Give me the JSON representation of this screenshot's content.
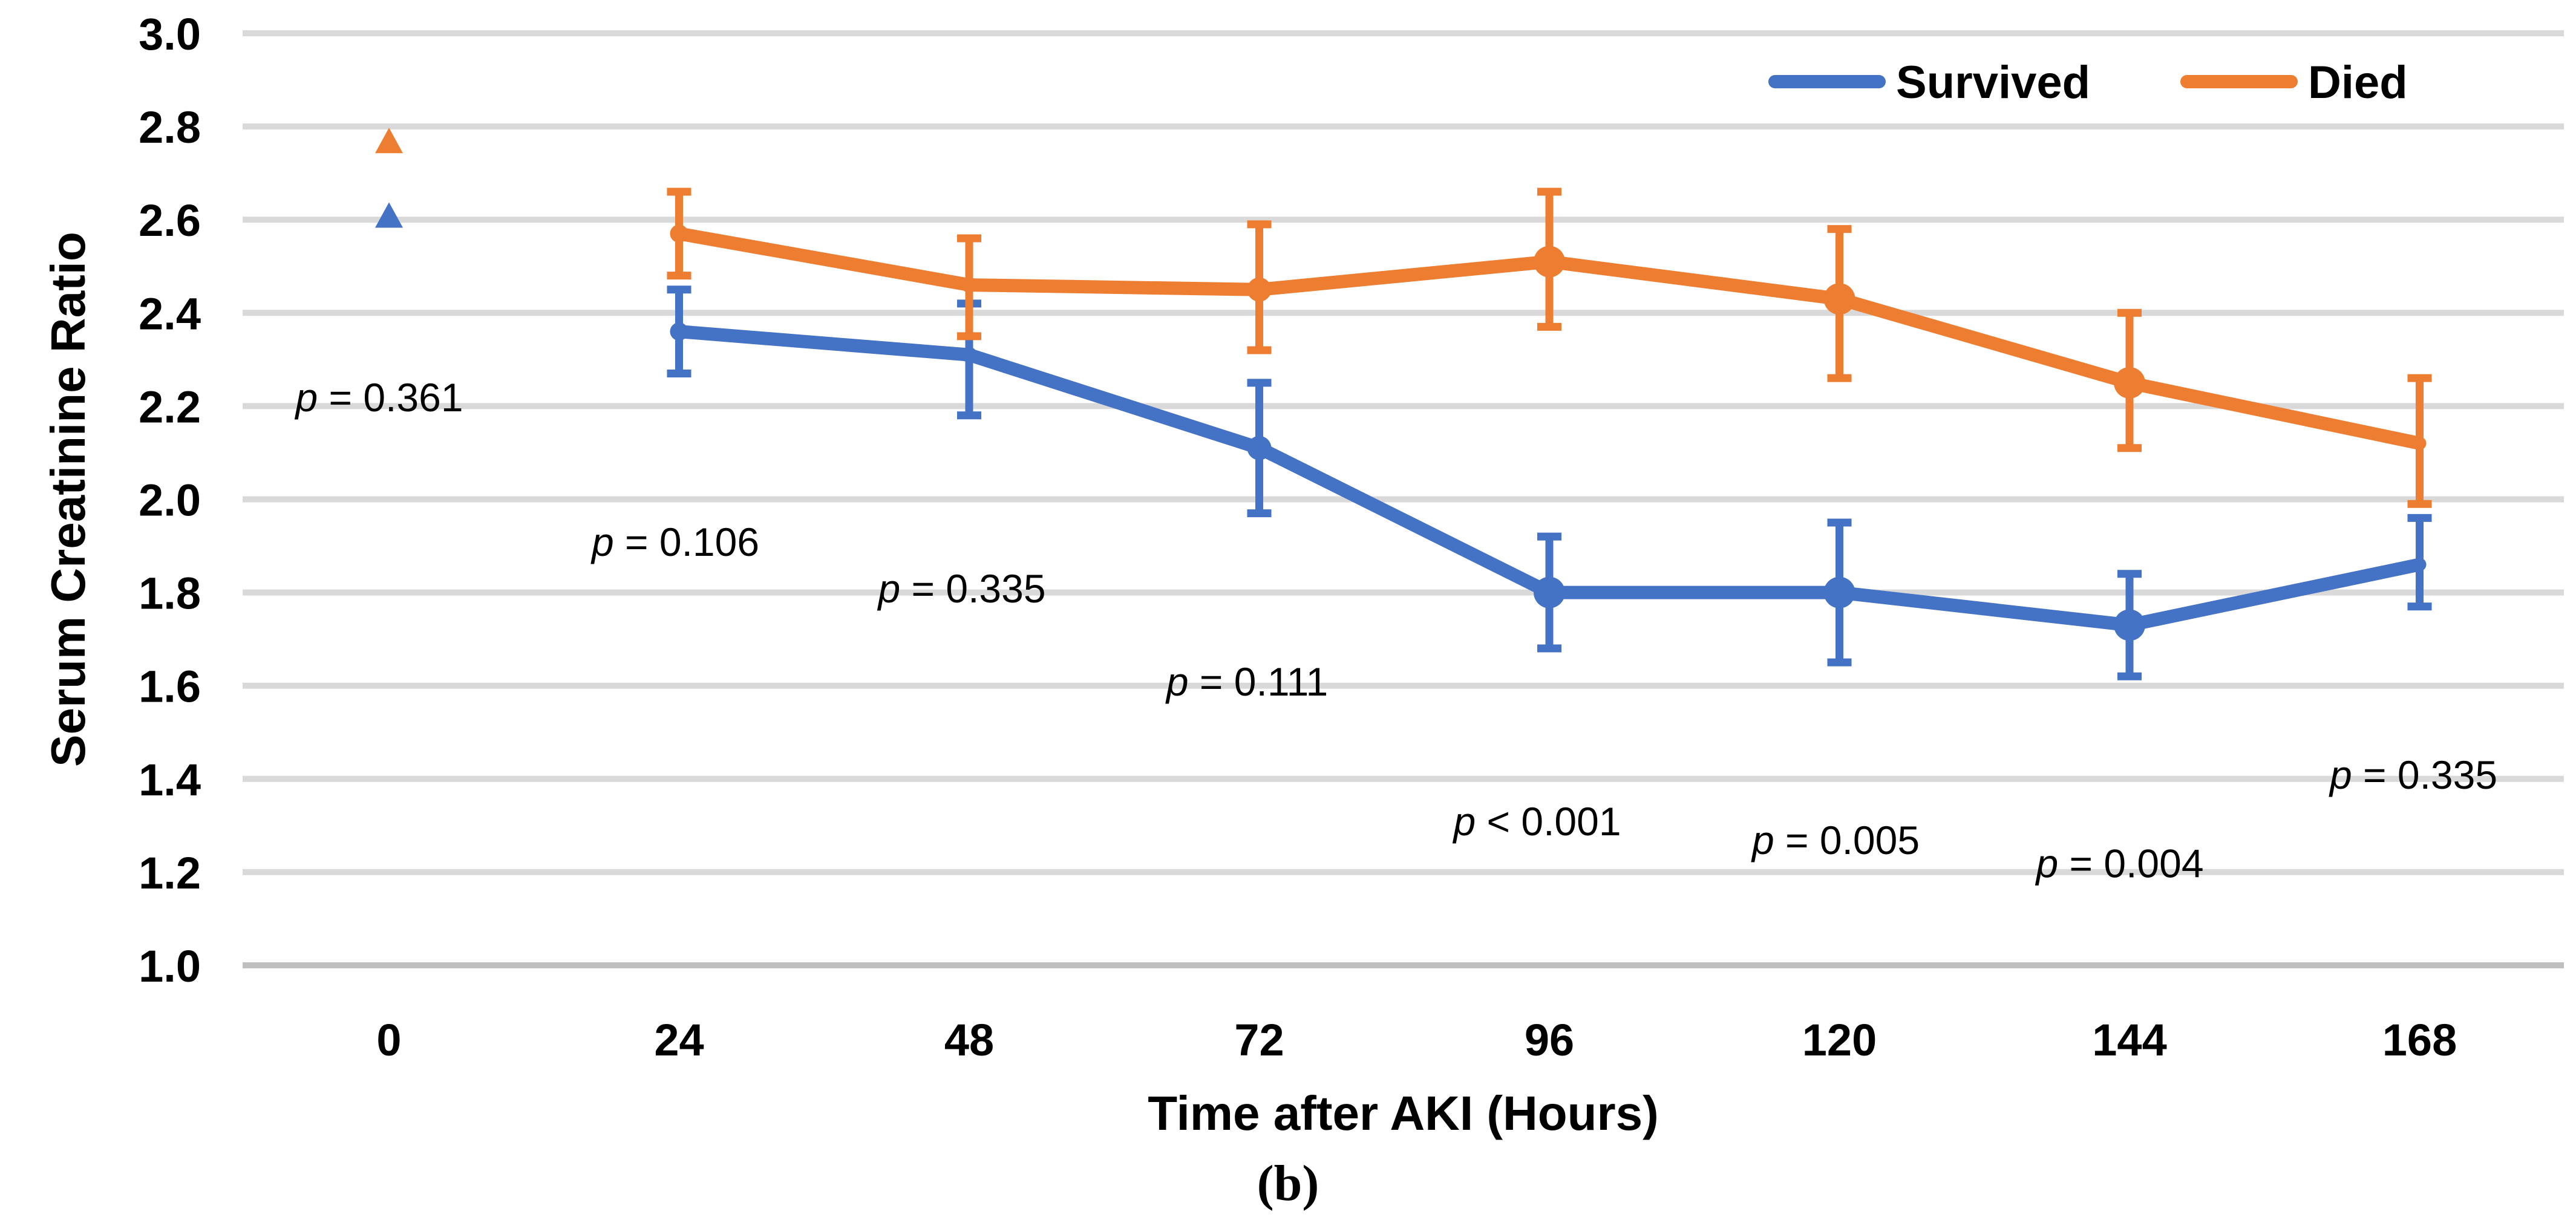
{
  "chart_data": {
    "type": "line",
    "title": "",
    "xlabel": "Time after AKI (Hours)",
    "ylabel": "Serum Creatinine Ratio",
    "caption": "(b)",
    "x_values": [
      0,
      24,
      48,
      72,
      96,
      120,
      144,
      168
    ],
    "x_ticklabels": [
      "0",
      "24",
      "48",
      "72",
      "96",
      "120",
      "144",
      "168"
    ],
    "y_ticks": [
      "3.0",
      "2.8",
      "2.6",
      "2.4",
      "2.2",
      "2.0",
      "1.8",
      "1.6",
      "1.4",
      "1.2",
      "1.0"
    ],
    "ylim": [
      1.0,
      3.0
    ],
    "grid": "horizontal",
    "legend_position": "top-right-inside",
    "colors": {
      "survived": "#4472C4",
      "died": "#ED7D31",
      "gridline": "#D9D9D9",
      "axis_line": "#BFBFBF",
      "text": "#000000"
    },
    "series": [
      {
        "name": "Survived",
        "color_key": "survived",
        "t0_marker": "triangle",
        "values": [
          2.61,
          2.36,
          2.31,
          2.11,
          1.8,
          1.8,
          1.73,
          1.86
        ],
        "err_up": [
          null,
          0.09,
          0.11,
          0.14,
          0.12,
          0.15,
          0.11,
          0.1
        ],
        "err_down": [
          null,
          0.09,
          0.13,
          0.14,
          0.12,
          0.15,
          0.11,
          0.09
        ]
      },
      {
        "name": "Died",
        "color_key": "died",
        "t0_marker": "triangle",
        "values": [
          2.77,
          2.57,
          2.46,
          2.45,
          2.51,
          2.43,
          2.25,
          2.12
        ],
        "err_up": [
          null,
          0.09,
          0.1,
          0.14,
          0.15,
          0.15,
          0.15,
          0.14
        ],
        "err_down": [
          null,
          0.09,
          0.11,
          0.13,
          0.14,
          0.17,
          0.14,
          0.13
        ]
      }
    ],
    "annotations": [
      {
        "text": "p = 0.361",
        "t": -0.8,
        "v": 2.22
      },
      {
        "text": "p = 0.106",
        "t": 23.7,
        "v": 1.91
      },
      {
        "text": "p = 0.335",
        "t": 47.4,
        "v": 1.81
      },
      {
        "text": "p = 0.111",
        "t": 71.0,
        "v": 1.61
      },
      {
        "text": "p < 0.001",
        "t": 95.0,
        "v": 1.31
      },
      {
        "text": "p = 0.005",
        "t": 119.7,
        "v": 1.27
      },
      {
        "text": "p = 0.004",
        "t": 143.2,
        "v": 1.22
      },
      {
        "text": "p = 0.335",
        "t": 167.5,
        "v": 1.41
      }
    ]
  }
}
